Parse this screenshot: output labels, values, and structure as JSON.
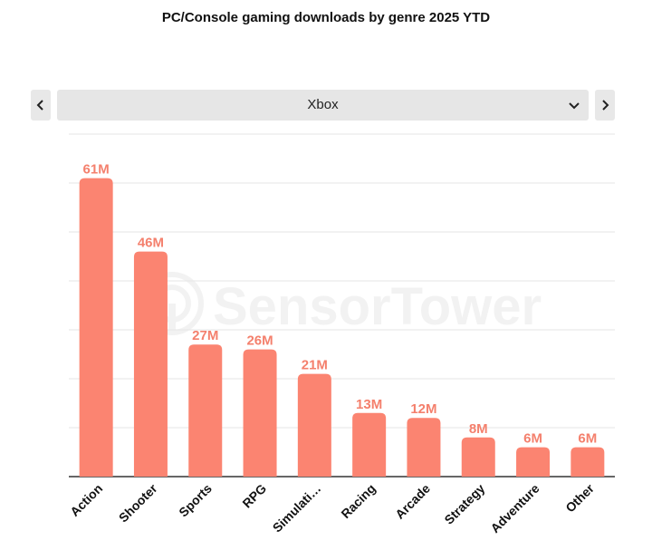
{
  "chart_data": {
    "type": "bar",
    "title": "PC/Console gaming downloads by genre 2025 YTD",
    "categories": [
      "Action",
      "Shooter",
      "Sports",
      "RPG",
      "Simulati…",
      "Racing",
      "Arcade",
      "Strategy",
      "Adventure",
      "Other"
    ],
    "values": [
      61,
      46,
      27,
      26,
      21,
      13,
      12,
      8,
      6,
      6
    ],
    "value_labels": [
      "61M",
      "46M",
      "27M",
      "26M",
      "21M",
      "13M",
      "12M",
      "8M",
      "6M",
      "6M"
    ],
    "ylim": [
      0,
      70
    ],
    "grid": true,
    "bar_color": "#fb8471",
    "label_color": "#f4806d"
  },
  "selector": {
    "value": "Xbox",
    "prev_icon": "chevron-left-icon",
    "next_icon": "chevron-right-icon",
    "dropdown_icon": "chevron-down-icon"
  },
  "watermark": {
    "text": "SensorTower"
  }
}
